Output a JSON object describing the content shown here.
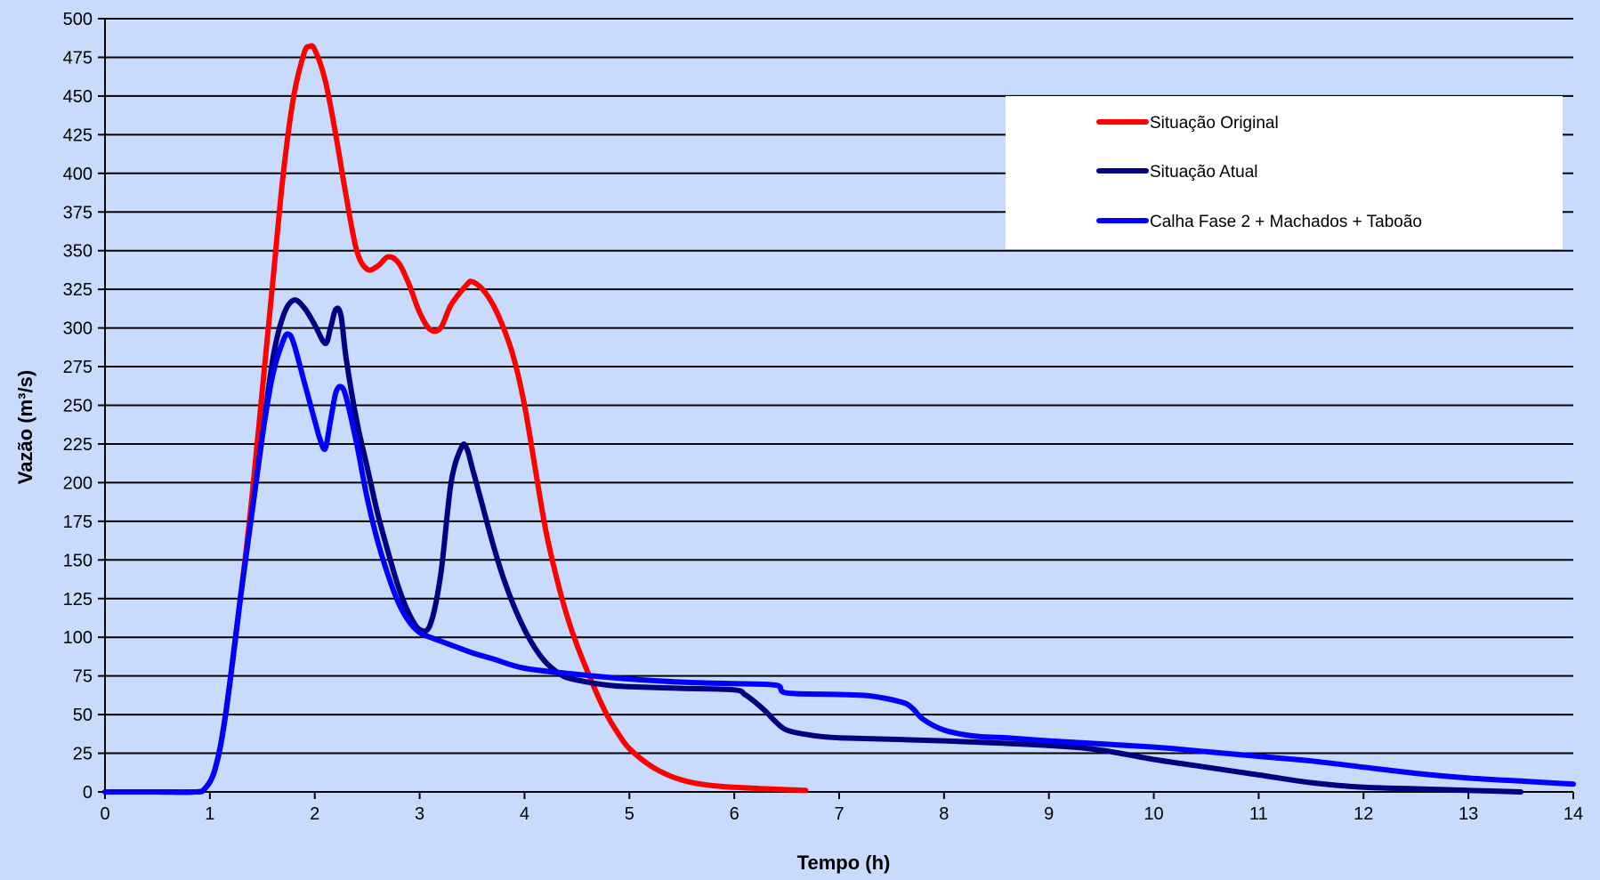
{
  "chart_data": {
    "type": "line",
    "xlabel": "Tempo (h)",
    "ylabel": "Vazão (m³/s)",
    "xlim": [
      0,
      14
    ],
    "ylim": [
      0,
      500
    ],
    "x_ticks": [
      0,
      1,
      2,
      3,
      4,
      5,
      6,
      7,
      8,
      9,
      10,
      11,
      12,
      13,
      14
    ],
    "y_ticks": [
      0,
      25,
      50,
      75,
      100,
      125,
      150,
      175,
      200,
      225,
      250,
      275,
      300,
      325,
      350,
      375,
      400,
      425,
      450,
      475,
      500
    ],
    "grid": "horizontal",
    "legend_position": "top-right",
    "colors": {
      "background": "#c9dbfc",
      "plot_area": "#c9dbfc",
      "legend_box": "#ffffff"
    },
    "series": [
      {
        "name": "Situação Original",
        "color": "#ff0000",
        "points": [
          [
            0,
            0
          ],
          [
            0.5,
            0
          ],
          [
            0.85,
            0
          ],
          [
            0.95,
            2
          ],
          [
            1.05,
            15
          ],
          [
            1.15,
            50
          ],
          [
            1.3,
            130
          ],
          [
            1.4,
            190
          ],
          [
            1.5,
            260
          ],
          [
            1.6,
            330
          ],
          [
            1.7,
            400
          ],
          [
            1.8,
            450
          ],
          [
            1.9,
            478
          ],
          [
            1.95,
            482
          ],
          [
            2.0,
            480
          ],
          [
            2.1,
            460
          ],
          [
            2.2,
            425
          ],
          [
            2.3,
            385
          ],
          [
            2.4,
            350
          ],
          [
            2.5,
            338
          ],
          [
            2.6,
            340
          ],
          [
            2.7,
            346
          ],
          [
            2.8,
            342
          ],
          [
            2.9,
            328
          ],
          [
            3.0,
            310
          ],
          [
            3.1,
            299
          ],
          [
            3.2,
            300
          ],
          [
            3.3,
            315
          ],
          [
            3.45,
            328
          ],
          [
            3.5,
            330
          ],
          [
            3.6,
            325
          ],
          [
            3.7,
            315
          ],
          [
            3.8,
            300
          ],
          [
            3.9,
            280
          ],
          [
            4.0,
            250
          ],
          [
            4.1,
            210
          ],
          [
            4.2,
            170
          ],
          [
            4.3,
            140
          ],
          [
            4.4,
            115
          ],
          [
            4.5,
            95
          ],
          [
            4.6,
            78
          ],
          [
            4.7,
            62
          ],
          [
            4.8,
            48
          ],
          [
            4.9,
            37
          ],
          [
            5.0,
            28
          ],
          [
            5.2,
            17
          ],
          [
            5.4,
            10
          ],
          [
            5.6,
            6
          ],
          [
            5.8,
            4
          ],
          [
            6.0,
            3
          ],
          [
            6.3,
            2
          ],
          [
            6.68,
            1
          ]
        ]
      },
      {
        "name": "Situação Atual",
        "color": "#000080",
        "points": [
          [
            0,
            0
          ],
          [
            0.5,
            0
          ],
          [
            0.85,
            0
          ],
          [
            0.95,
            2
          ],
          [
            1.05,
            15
          ],
          [
            1.15,
            50
          ],
          [
            1.3,
            130
          ],
          [
            1.4,
            180
          ],
          [
            1.5,
            230
          ],
          [
            1.6,
            280
          ],
          [
            1.7,
            308
          ],
          [
            1.8,
            318
          ],
          [
            1.9,
            313
          ],
          [
            2.0,
            302
          ],
          [
            2.1,
            290
          ],
          [
            2.15,
            300
          ],
          [
            2.2,
            312
          ],
          [
            2.25,
            308
          ],
          [
            2.3,
            280
          ],
          [
            2.4,
            240
          ],
          [
            2.5,
            210
          ],
          [
            2.6,
            180
          ],
          [
            2.7,
            155
          ],
          [
            2.8,
            132
          ],
          [
            2.9,
            115
          ],
          [
            3.0,
            105
          ],
          [
            3.1,
            108
          ],
          [
            3.2,
            140
          ],
          [
            3.3,
            200
          ],
          [
            3.4,
            223
          ],
          [
            3.45,
            222
          ],
          [
            3.5,
            210
          ],
          [
            3.6,
            185
          ],
          [
            3.7,
            160
          ],
          [
            3.8,
            138
          ],
          [
            3.9,
            120
          ],
          [
            4.0,
            105
          ],
          [
            4.1,
            93
          ],
          [
            4.2,
            84
          ],
          [
            4.3,
            78
          ],
          [
            4.4,
            74
          ],
          [
            4.6,
            71
          ],
          [
            4.8,
            69
          ],
          [
            5.0,
            68
          ],
          [
            5.5,
            67
          ],
          [
            6.0,
            66
          ],
          [
            6.1,
            63
          ],
          [
            6.2,
            58
          ],
          [
            6.3,
            52
          ],
          [
            6.4,
            45
          ],
          [
            6.5,
            40
          ],
          [
            6.7,
            37
          ],
          [
            7.0,
            35
          ],
          [
            8.0,
            33
          ],
          [
            9.0,
            30
          ],
          [
            9.5,
            27
          ],
          [
            10.0,
            21
          ],
          [
            10.5,
            16
          ],
          [
            11.0,
            11
          ],
          [
            11.5,
            6
          ],
          [
            12.0,
            3
          ],
          [
            12.5,
            2
          ],
          [
            13.0,
            1
          ],
          [
            13.5,
            0
          ]
        ]
      },
      {
        "name": "Calha Fase 2 + Machados + Taboão",
        "color": "#0000ff",
        "points": [
          [
            0,
            0
          ],
          [
            0.5,
            0
          ],
          [
            0.85,
            0
          ],
          [
            0.95,
            2
          ],
          [
            1.05,
            15
          ],
          [
            1.15,
            50
          ],
          [
            1.3,
            130
          ],
          [
            1.4,
            180
          ],
          [
            1.5,
            230
          ],
          [
            1.6,
            270
          ],
          [
            1.7,
            292
          ],
          [
            1.75,
            296
          ],
          [
            1.8,
            290
          ],
          [
            1.9,
            265
          ],
          [
            2.0,
            240
          ],
          [
            2.05,
            228
          ],
          [
            2.1,
            222
          ],
          [
            2.15,
            240
          ],
          [
            2.2,
            258
          ],
          [
            2.25,
            262
          ],
          [
            2.3,
            255
          ],
          [
            2.4,
            225
          ],
          [
            2.5,
            190
          ],
          [
            2.6,
            162
          ],
          [
            2.7,
            140
          ],
          [
            2.8,
            122
          ],
          [
            2.9,
            110
          ],
          [
            3.0,
            103
          ],
          [
            3.1,
            100
          ],
          [
            3.3,
            95
          ],
          [
            3.5,
            90
          ],
          [
            3.7,
            86
          ],
          [
            4.0,
            80
          ],
          [
            4.5,
            76
          ],
          [
            5.0,
            73
          ],
          [
            5.5,
            71
          ],
          [
            6.0,
            70
          ],
          [
            6.4,
            69
          ],
          [
            6.5,
            64
          ],
          [
            7.0,
            63
          ],
          [
            7.3,
            62
          ],
          [
            7.6,
            58
          ],
          [
            7.7,
            54
          ],
          [
            7.8,
            47
          ],
          [
            8.0,
            40
          ],
          [
            8.3,
            36
          ],
          [
            8.6,
            35
          ],
          [
            9.0,
            33
          ],
          [
            10.0,
            29
          ],
          [
            10.5,
            26
          ],
          [
            11.0,
            23
          ],
          [
            11.5,
            20
          ],
          [
            12.0,
            16
          ],
          [
            12.5,
            12
          ],
          [
            13.0,
            9
          ],
          [
            13.5,
            7
          ],
          [
            14.0,
            5
          ]
        ]
      }
    ]
  }
}
